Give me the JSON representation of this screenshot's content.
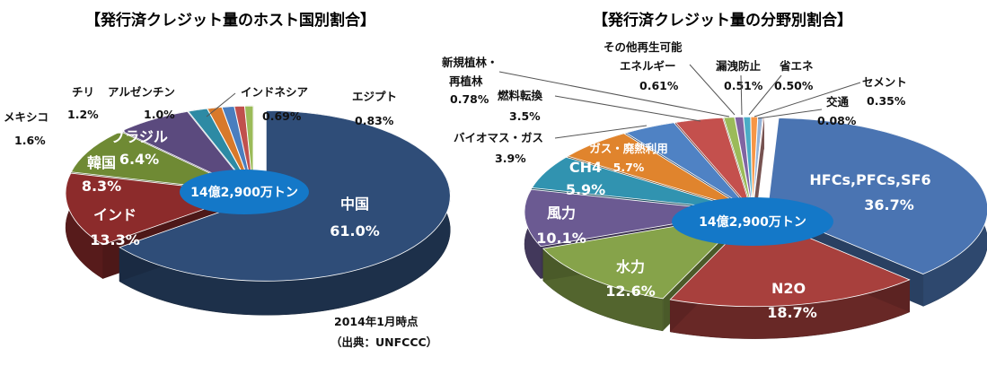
{
  "chart_data": [
    {
      "type": "pie",
      "title": "【発行済クレジット量のホスト国別割合】",
      "center_label": "14億2,900万トン",
      "note_lines": [
        "2014年1月時点",
        "（出典：UNFCCC）"
      ],
      "slices": [
        {
          "label": "中国",
          "value": 61.0,
          "pct_label": "61.0%",
          "color": "#2f4d78"
        },
        {
          "label": "インド",
          "value": 13.3,
          "pct_label": "13.3%",
          "color": "#8c2b2b"
        },
        {
          "label": "韓国",
          "value": 8.3,
          "pct_label": "8.3%",
          "color": "#6f8a34"
        },
        {
          "label": "ブラジル",
          "value": 6.4,
          "pct_label": "6.4%",
          "color": "#5b4a7e"
        },
        {
          "label": "メキシコ",
          "value": 1.6,
          "pct_label": "1.6%",
          "color": "#2d8aa4"
        },
        {
          "label": "チリ",
          "value": 1.2,
          "pct_label": "1.2%",
          "color": "#d8792a"
        },
        {
          "label": "アルゼンチン",
          "value": 1.0,
          "pct_label": "1.0%",
          "color": "#4a7ebf"
        },
        {
          "label": "エジプト",
          "value": 0.83,
          "pct_label": "0.83%",
          "color": "#c0504d"
        },
        {
          "label": "インドネシア",
          "value": 0.69,
          "pct_label": "0.69%",
          "color": "#9bbb59"
        }
      ]
    },
    {
      "type": "pie",
      "title": "【発行済クレジット量の分野別割合】",
      "center_label": "14億2,900万トン",
      "slices": [
        {
          "label": "HFCs,PFCs,SF6",
          "value": 36.7,
          "pct_label": "36.7%",
          "color": "#4a74b2"
        },
        {
          "label": "N2O",
          "value": 18.7,
          "pct_label": "18.7%",
          "color": "#a8403d"
        },
        {
          "label": "水力",
          "value": 12.6,
          "pct_label": "12.6%",
          "color": "#86a34a"
        },
        {
          "label": "風力",
          "value": 10.1,
          "pct_label": "10.1%",
          "color": "#6b5a92"
        },
        {
          "label": "CH4",
          "value": 5.9,
          "pct_label": "5.9%",
          "color": "#3193b0"
        },
        {
          "label": "ガス・廃熱利用",
          "value": 5.7,
          "pct_label": "5.7%",
          "color": "#e0842d"
        },
        {
          "label": "バイオマス・ガス",
          "value": 3.9,
          "pct_label": "3.9%",
          "color": "#4f82c4"
        },
        {
          "label": "燃料転換",
          "value": 3.5,
          "pct_label": "3.5%",
          "color": "#c4504d"
        },
        {
          "label": "新規植林・再植林",
          "value": 0.78,
          "pct_label": "0.78%",
          "color": "#9bbb59"
        },
        {
          "label": "その他再生可能エネルギー",
          "value": 0.61,
          "pct_label": "0.61%",
          "color": "#8064a2"
        },
        {
          "label": "漏洩防止",
          "value": 0.51,
          "pct_label": "0.51%",
          "color": "#4bacc6"
        },
        {
          "label": "省エネ",
          "value": 0.5,
          "pct_label": "0.50%",
          "color": "#f79646"
        },
        {
          "label": "セメント",
          "value": 0.35,
          "pct_label": "0.35%",
          "color": "#95b3d7"
        },
        {
          "label": "交通",
          "value": 0.08,
          "pct_label": "0.08%",
          "color": "#d99694"
        }
      ]
    }
  ]
}
